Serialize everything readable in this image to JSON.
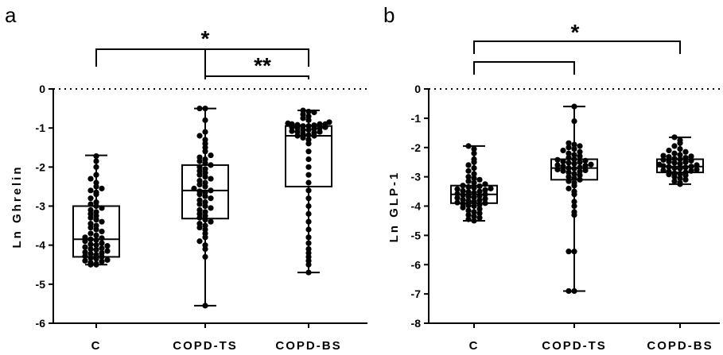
{
  "chart_data": [
    {
      "type": "box",
      "panel": "a",
      "ylabel": "Ln Ghrelin",
      "ylim": [
        -6,
        0
      ],
      "yticks": [
        "0",
        "-1",
        "-2",
        "-3",
        "-4",
        "-5",
        "-6"
      ],
      "reference_line": 0,
      "categories": [
        "C",
        "COPD-TS",
        "COPD-BS"
      ],
      "boxes": [
        {
          "min": -4.5,
          "q1": -4.3,
          "median": -3.85,
          "q3": -3.0,
          "max": -1.7,
          "points": [
            -4.5,
            -4.5,
            -4.48,
            -4.45,
            -4.42,
            -4.4,
            -4.38,
            -4.35,
            -4.33,
            -4.3,
            -4.28,
            -4.25,
            -4.22,
            -4.2,
            -4.18,
            -4.15,
            -4.12,
            -4.1,
            -4.08,
            -4.05,
            -4.02,
            -4.0,
            -3.98,
            -3.95,
            -3.9,
            -3.87,
            -3.85,
            -3.82,
            -3.8,
            -3.75,
            -3.7,
            -3.65,
            -3.6,
            -3.55,
            -3.5,
            -3.45,
            -3.4,
            -3.35,
            -3.3,
            -3.25,
            -3.2,
            -3.15,
            -3.1,
            -3.05,
            -3.0,
            -2.95,
            -2.9,
            -2.8,
            -2.7,
            -2.65,
            -2.6,
            -2.55,
            -2.5,
            -2.4,
            -2.3,
            -2.2,
            -2.0,
            -1.85,
            -1.72
          ]
        },
        {
          "min": -5.55,
          "q1": -3.32,
          "median": -2.6,
          "q3": -1.95,
          "max": -0.5,
          "points": [
            -5.55,
            -4.3,
            -4.1,
            -4.0,
            -3.9,
            -3.8,
            -3.7,
            -3.6,
            -3.55,
            -3.5,
            -3.45,
            -3.4,
            -3.35,
            -3.3,
            -3.25,
            -3.2,
            -3.15,
            -3.1,
            -3.05,
            -3.0,
            -2.95,
            -2.9,
            -2.85,
            -2.8,
            -2.75,
            -2.7,
            -2.65,
            -2.62,
            -2.6,
            -2.55,
            -2.5,
            -2.45,
            -2.4,
            -2.35,
            -2.3,
            -2.25,
            -2.2,
            -2.15,
            -2.1,
            -2.05,
            -2.0,
            -1.95,
            -1.9,
            -1.85,
            -1.8,
            -1.75,
            -1.7,
            -1.6,
            -1.5,
            -1.4,
            -1.3,
            -1.2,
            -1.1,
            -0.8,
            -0.5,
            -0.5
          ]
        },
        {
          "min": -4.7,
          "q1": -2.5,
          "median": -1.2,
          "q3": -0.95,
          "max": -0.55,
          "points": [
            -4.7,
            -4.5,
            -4.4,
            -4.3,
            -4.2,
            -4.1,
            -3.95,
            -3.8,
            -3.6,
            -3.4,
            -3.2,
            -3.0,
            -2.8,
            -2.6,
            -2.4,
            -2.2,
            -2.0,
            -1.8,
            -1.6,
            -1.4,
            -1.3,
            -1.25,
            -1.2,
            -1.2,
            -1.18,
            -1.15,
            -1.12,
            -1.1,
            -1.1,
            -1.08,
            -1.05,
            -1.05,
            -1.02,
            -1.0,
            -1.0,
            -0.98,
            -0.98,
            -0.95,
            -0.95,
            -0.93,
            -0.92,
            -0.9,
            -0.9,
            -0.9,
            -0.88,
            -0.85,
            -0.8,
            -0.75,
            -0.7,
            -0.65,
            -0.6,
            -0.58,
            -0.55
          ]
        }
      ],
      "significance": [
        {
          "from": "C",
          "to": "COPD-BS",
          "label": "*"
        },
        {
          "from": "COPD-TS",
          "to": "COPD-BS",
          "label": "**"
        }
      ]
    },
    {
      "type": "box",
      "panel": "b",
      "ylabel": "Ln GLP-1",
      "ylim": [
        -8,
        0
      ],
      "yticks": [
        "0",
        "-1",
        "-2",
        "-3",
        "-4",
        "-5",
        "-6",
        "-7",
        "-8"
      ],
      "reference_line": 0,
      "categories": [
        "C",
        "COPD-TS",
        "COPD-BS"
      ],
      "boxes": [
        {
          "min": -4.5,
          "q1": -3.9,
          "median": -3.6,
          "q3": -3.3,
          "max": -1.95,
          "points": [
            -4.5,
            -4.45,
            -4.4,
            -4.35,
            -4.3,
            -4.25,
            -4.2,
            -4.15,
            -4.1,
            -4.05,
            -4.0,
            -3.98,
            -3.95,
            -3.92,
            -3.9,
            -3.88,
            -3.85,
            -3.82,
            -3.8,
            -3.78,
            -3.75,
            -3.72,
            -3.7,
            -3.68,
            -3.65,
            -3.62,
            -3.6,
            -3.58,
            -3.55,
            -3.52,
            -3.5,
            -3.48,
            -3.45,
            -3.42,
            -3.4,
            -3.38,
            -3.35,
            -3.32,
            -3.3,
            -3.25,
            -3.2,
            -3.15,
            -3.1,
            -3.05,
            -3.0,
            -2.9,
            -2.8,
            -2.7,
            -2.6,
            -2.5,
            -2.4,
            -2.2,
            -2.05,
            -1.95
          ]
        },
        {
          "min": -6.9,
          "q1": -3.1,
          "median": -2.7,
          "q3": -2.4,
          "max": -0.6,
          "points": [
            -6.9,
            -6.9,
            -5.55,
            -5.55,
            -4.3,
            -4.2,
            -4.0,
            -3.85,
            -3.6,
            -3.5,
            -3.4,
            -3.3,
            -3.2,
            -3.15,
            -3.1,
            -3.05,
            -3.0,
            -2.95,
            -2.9,
            -2.85,
            -2.82,
            -2.8,
            -2.78,
            -2.75,
            -2.72,
            -2.7,
            -2.68,
            -2.65,
            -2.62,
            -2.6,
            -2.58,
            -2.55,
            -2.52,
            -2.5,
            -2.48,
            -2.45,
            -2.42,
            -2.4,
            -2.35,
            -2.3,
            -2.25,
            -2.2,
            -2.15,
            -2.1,
            -2.05,
            -2.0,
            -1.95,
            -1.9,
            -1.85,
            -1.1,
            -0.6
          ]
        },
        {
          "min": -3.25,
          "q1": -2.85,
          "median": -2.65,
          "q3": -2.4,
          "max": -1.65,
          "points": [
            -3.25,
            -3.2,
            -3.15,
            -3.1,
            -3.05,
            -3.0,
            -2.95,
            -2.92,
            -2.9,
            -2.88,
            -2.85,
            -2.82,
            -2.8,
            -2.78,
            -2.75,
            -2.72,
            -2.7,
            -2.68,
            -2.66,
            -2.65,
            -2.63,
            -2.6,
            -2.58,
            -2.55,
            -2.52,
            -2.5,
            -2.48,
            -2.45,
            -2.42,
            -2.4,
            -2.38,
            -2.35,
            -2.32,
            -2.3,
            -2.28,
            -2.25,
            -2.2,
            -2.15,
            -2.1,
            -2.05,
            -1.95,
            -1.85,
            -1.75,
            -1.65
          ]
        }
      ],
      "significance": [
        {
          "from": "C",
          "to": "COPD-BS",
          "label": "*"
        },
        {
          "from": "C",
          "to": "COPD-TS",
          "label": ""
        }
      ]
    }
  ]
}
